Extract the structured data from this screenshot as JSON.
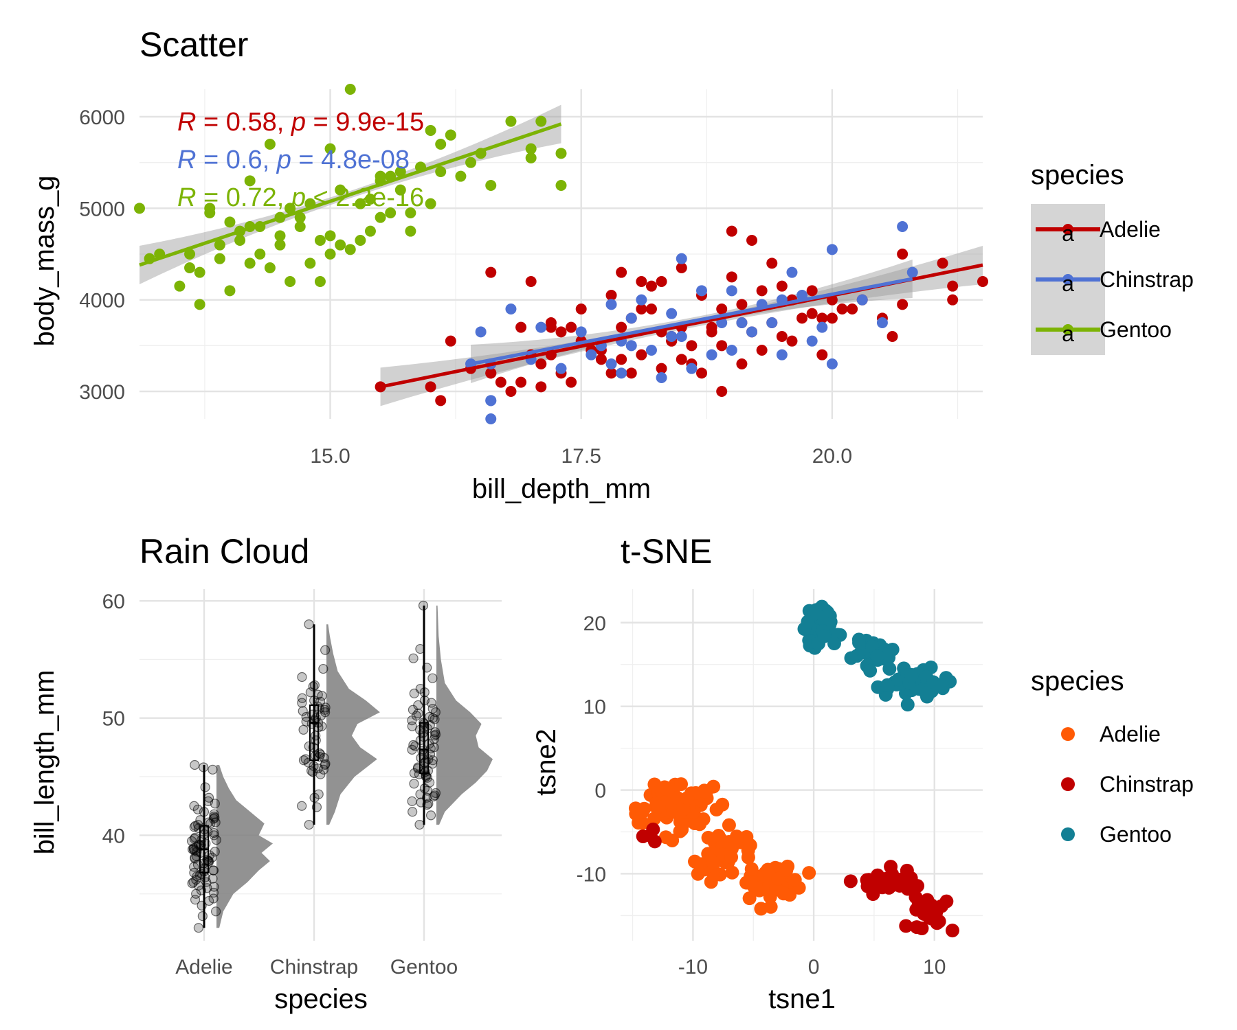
{
  "chart_data": [
    {
      "type": "scatter",
      "title": "Scatter",
      "xlabel": "bill_depth_mm",
      "ylabel": "body_mass_g",
      "xlim": [
        13.1,
        21.5
      ],
      "ylim": [
        2700,
        6300
      ],
      "xticks": [
        "15.0",
        "17.5",
        "20.0"
      ],
      "xtick_values": [
        15,
        17.5,
        20
      ],
      "yticks": [
        "3000",
        "4000",
        "5000",
        "6000"
      ],
      "ytick_values": [
        3000,
        4000,
        5000,
        6000
      ],
      "legend_title": "species",
      "legend_position": "right",
      "grid": true,
      "series": [
        {
          "name": "Adelie",
          "color": "#C00000",
          "fit": [
            [
              15.5,
              3050
            ],
            [
              21.5,
              4380
            ]
          ],
          "stat_R": "0.58",
          "stat_p": "9.9e-15",
          "x": [
            15.5,
            16,
            16.1,
            16.2,
            16.4,
            16.6,
            16.8,
            16.9,
            17,
            17.1,
            17.2,
            17.3,
            17.4,
            17.5,
            17.6,
            17.7,
            17.8,
            17.9,
            18,
            18.1,
            18.2,
            18.3,
            18.4,
            18.5,
            18.6,
            18.7,
            18.8,
            18.9,
            19,
            19.1,
            19.2,
            19.3,
            19.4,
            19.5,
            19.6,
            19.7,
            19.8,
            19.9,
            20,
            20.1,
            20.3,
            20.5,
            20.6,
            20.7,
            21.1,
            21.2,
            21.5,
            16.7,
            17.2,
            17.9,
            18.5,
            19.1,
            19.6,
            20.2,
            17.1,
            17.7,
            18.3,
            18.9,
            19.3,
            16.6,
            17.4,
            18.1,
            18.7,
            19.5,
            20.7,
            17.3,
            17.9,
            18.4,
            19,
            19.8,
            16.9,
            18,
            18.6,
            19.2,
            20,
            17.5,
            18.2,
            18.8,
            19.4,
            17.6,
            18.1,
            18.9,
            17,
            18.5,
            19.1,
            21.2,
            18.3,
            17.8,
            16.6,
            17.2,
            18.4,
            19.9
          ],
          "y": [
            3050,
            3050,
            2900,
            3550,
            3250,
            3200,
            3000,
            3100,
            3400,
            3300,
            3750,
            3200,
            3100,
            3900,
            3450,
            3350,
            3200,
            3700,
            3800,
            4200,
            3900,
            3650,
            3550,
            4350,
            3500,
            4050,
            3700,
            3000,
            4250,
            3750,
            3650,
            3450,
            3750,
            3600,
            3550,
            3800,
            4100,
            3800,
            4000,
            3900,
            4000,
            3800,
            3600,
            3950,
            4400,
            4150,
            4200,
            3100,
            3400,
            4300,
            3700,
            3950,
            4000,
            3900,
            3050,
            3450,
            3250,
            3900,
            4100,
            3200,
            3700,
            3400,
            3200,
            4150,
            4500,
            3650,
            3350,
            3550,
            4750,
            3850,
            3700,
            3200,
            3300,
            4650,
            3800,
            3550,
            4150,
            3650,
            4400,
            3450,
            3900,
            3500,
            4200,
            3350,
            3300,
            4000,
            4200,
            4050,
            4300,
            3700,
            3600,
            3400
          ],
          "r": 0.58,
          "p": 9.9e-15
        },
        {
          "name": "Chinstrap",
          "color": "#4F72D4",
          "fit": [
            [
              16.4,
              3300
            ],
            [
              20.8,
              4230
            ]
          ],
          "stat_R": "0.6",
          "stat_p": "4.8e-08",
          "x": [
            16.4,
            16.5,
            16.6,
            16.6,
            16.6,
            16.8,
            17,
            17.1,
            17.3,
            17.5,
            17.6,
            17.7,
            17.8,
            17.9,
            17.9,
            18,
            18.1,
            18.2,
            18.3,
            18.4,
            18.5,
            18.6,
            18.7,
            18.8,
            18.9,
            19,
            19.1,
            19.2,
            19.3,
            19.4,
            19.5,
            19.6,
            19.7,
            19.8,
            19.9,
            20,
            20,
            20.3,
            20.5,
            20.7,
            20.8,
            18,
            18.5,
            19,
            17.8,
            16.6,
            18.4,
            19.5
          ],
          "y": [
            3300,
            3650,
            2700,
            2900,
            3300,
            3900,
            3350,
            3700,
            3250,
            3650,
            3400,
            3500,
            3950,
            3550,
            3200,
            3800,
            4000,
            3450,
            3150,
            3600,
            4450,
            3250,
            4100,
            3400,
            3750,
            4100,
            3750,
            3650,
            3950,
            3750,
            3400,
            4300,
            4050,
            3550,
            3700,
            3300,
            4550,
            4000,
            3750,
            4800,
            4300,
            3500,
            3600,
            3450,
            3300,
            2900,
            3850,
            4000
          ],
          "r": 0.6,
          "p": 4.8e-08
        },
        {
          "name": "Gentoo",
          "color": "#7CB305",
          "fit": [
            [
              13.1,
              4380
            ],
            [
              17.3,
              5920
            ]
          ],
          "stat_R": "0.72",
          "stat_p": "< 2.2e-16",
          "x": [
            13.1,
            13.2,
            13.3,
            13.5,
            13.6,
            13.7,
            13.7,
            13.8,
            13.9,
            14,
            14,
            14.1,
            14.2,
            14.2,
            14.3,
            14.4,
            14.4,
            14.5,
            14.5,
            14.6,
            14.6,
            14.7,
            14.8,
            14.8,
            14.9,
            15,
            15,
            15.1,
            15.1,
            15.2,
            15.2,
            15.3,
            15.4,
            15.4,
            15.5,
            15.5,
            15.6,
            15.7,
            15.7,
            15.8,
            15.9,
            16,
            16,
            16.1,
            16.2,
            16.3,
            16.4,
            16.5,
            16.6,
            16.8,
            17,
            17,
            17.1,
            17.3,
            17.3,
            13.6,
            14.3,
            14.6,
            15,
            15.8,
            16.1,
            14.1,
            14.9,
            15.5,
            13.9,
            14.7,
            15.3,
            16.2,
            14.5,
            15.6,
            13.8,
            14.2
          ],
          "y": [
            5000,
            4450,
            4500,
            4150,
            4350,
            3950,
            4300,
            4950,
            4600,
            4100,
            4850,
            4650,
            4800,
            5300,
            4500,
            4350,
            5700,
            4700,
            4900,
            4200,
            5000,
            4800,
            4400,
            5050,
            4650,
            4700,
            5650,
            4600,
            5200,
            4550,
            6300,
            4650,
            4750,
            5100,
            4900,
            5300,
            4950,
            5400,
            5200,
            4750,
            5450,
            5050,
            5850,
            5400,
            5800,
            5350,
            5500,
            5600,
            5250,
            5950,
            5550,
            5650,
            5950,
            5600,
            5250,
            4500,
            4800,
            5000,
            4500,
            4950,
            5700,
            4750,
            4200,
            5350,
            4450,
            4900,
            5050,
            5800,
            4600,
            5350,
            5000,
            4400
          ],
          "r": 0.72,
          "p": 2.2e-16
        }
      ]
    },
    {
      "type": "raincloud",
      "title": "Rain Cloud",
      "xlabel": "species",
      "ylabel": "bill_length_mm",
      "categories": [
        "Adelie",
        "Chinstrap",
        "Gentoo"
      ],
      "yticks": [
        "40",
        "50",
        "60"
      ],
      "ytick_values": [
        40,
        50,
        60
      ],
      "ylim": [
        31,
        61
      ],
      "grid": true,
      "groups": [
        {
          "name": "Adelie",
          "min": 32.1,
          "max": 46,
          "q1": 36.8,
          "median": 38.8,
          "q3": 40.8,
          "density": [
            [
              32.1,
              0.05
            ],
            [
              33.5,
              0.12
            ],
            [
              35,
              0.3
            ],
            [
              36,
              0.55
            ],
            [
              37,
              0.75
            ],
            [
              37.8,
              0.95
            ],
            [
              38.5,
              0.8
            ],
            [
              39.3,
              1.0
            ],
            [
              40,
              0.75
            ],
            [
              41,
              0.85
            ],
            [
              42,
              0.6
            ],
            [
              43,
              0.35
            ],
            [
              44,
              0.22
            ],
            [
              45,
              0.12
            ],
            [
              46,
              0.05
            ]
          ],
          "points": [
            32.1,
            33.1,
            33.5,
            34,
            34.4,
            34.5,
            34.6,
            35,
            35.1,
            35.3,
            35.5,
            35.6,
            35.7,
            35.9,
            36,
            36,
            36.2,
            36.3,
            36.4,
            36.5,
            36.6,
            36.7,
            36.8,
            36.9,
            37,
            37,
            37.2,
            37.3,
            37.5,
            37.6,
            37.7,
            37.8,
            37.8,
            37.9,
            38,
            38.1,
            38.1,
            38.2,
            38.3,
            38.5,
            38.6,
            38.6,
            38.7,
            38.8,
            38.8,
            38.9,
            39,
            39.1,
            39.2,
            39.2,
            39.3,
            39.5,
            39.6,
            39.6,
            39.7,
            39.8,
            40,
            40.1,
            40.2,
            40.3,
            40.5,
            40.6,
            40.7,
            40.8,
            40.9,
            41,
            41.1,
            41.1,
            41.3,
            41.4,
            41.5,
            41.6,
            41.8,
            42,
            42.2,
            42.5,
            42.7,
            42.9,
            43.2,
            44.1,
            45.6,
            45.8,
            46
          ]
        },
        {
          "name": "Chinstrap",
          "min": 40.9,
          "max": 58,
          "q1": 46.4,
          "median": 49.6,
          "q3": 51.1,
          "density": [
            [
              40.9,
              0.05
            ],
            [
              42,
              0.15
            ],
            [
              43.5,
              0.25
            ],
            [
              45,
              0.5
            ],
            [
              46.5,
              0.9
            ],
            [
              47.5,
              0.6
            ],
            [
              48.5,
              0.45
            ],
            [
              49.5,
              0.55
            ],
            [
              50.5,
              0.95
            ],
            [
              51.5,
              0.7
            ],
            [
              52.5,
              0.4
            ],
            [
              54,
              0.2
            ],
            [
              55.5,
              0.12
            ],
            [
              57,
              0.06
            ],
            [
              58,
              0.03
            ]
          ],
          "points": [
            40.9,
            42.4,
            42.5,
            43.2,
            43.5,
            45.2,
            45.4,
            45.5,
            45.6,
            45.7,
            45.9,
            46,
            46.1,
            46.2,
            46.4,
            46.5,
            46.6,
            46.7,
            46.8,
            46.9,
            47,
            47.5,
            47.6,
            48.1,
            48.5,
            49,
            49.2,
            49.3,
            49.5,
            49.6,
            49.7,
            49.8,
            50,
            50.1,
            50.2,
            50.3,
            50.5,
            50.6,
            50.7,
            50.8,
            50.9,
            51,
            51.3,
            51.4,
            51.5,
            51.7,
            51.9,
            52,
            52.2,
            52.7,
            52.8,
            53.5,
            54.2,
            55.8,
            58
          ]
        },
        {
          "name": "Gentoo",
          "min": 40.9,
          "max": 59.6,
          "q1": 45.3,
          "median": 47.3,
          "q3": 49.6,
          "density": [
            [
              40.9,
              0.05
            ],
            [
              42,
              0.15
            ],
            [
              43.5,
              0.45
            ],
            [
              44.5,
              0.7
            ],
            [
              45.5,
              0.9
            ],
            [
              46.5,
              1.0
            ],
            [
              47.5,
              0.75
            ],
            [
              48.5,
              0.7
            ],
            [
              49.5,
              0.8
            ],
            [
              50.5,
              0.6
            ],
            [
              51.5,
              0.35
            ],
            [
              53,
              0.15
            ],
            [
              55,
              0.08
            ],
            [
              57,
              0.04
            ],
            [
              59.6,
              0.02
            ]
          ],
          "points": [
            40.9,
            41.7,
            42,
            42.6,
            42.7,
            42.8,
            42.9,
            43.2,
            43.3,
            43.4,
            43.5,
            43.6,
            43.8,
            44,
            44.4,
            44.5,
            44.9,
            45,
            45.1,
            45.2,
            45.3,
            45.4,
            45.5,
            45.5,
            45.7,
            45.8,
            46.1,
            46.2,
            46.3,
            46.4,
            46.5,
            46.6,
            46.8,
            46.9,
            47.2,
            47.3,
            47.4,
            47.5,
            47.6,
            47.7,
            47.8,
            48.1,
            48.2,
            48.4,
            48.5,
            48.6,
            48.7,
            48.8,
            49,
            49.1,
            49.2,
            49.3,
            49.4,
            49.5,
            49.6,
            49.8,
            49.9,
            50,
            50.1,
            50.2,
            50.4,
            50.5,
            50.7,
            50.8,
            51.1,
            51.3,
            51.5,
            52.1,
            52.2,
            52.5,
            53.4,
            54.3,
            55.1,
            55.9,
            59.6
          ]
        }
      ]
    },
    {
      "type": "scatter",
      "title": "t-SNE",
      "xlabel": "tsne1",
      "ylabel": "tsne2",
      "xlim": [
        -16,
        14
      ],
      "ylim": [
        -18,
        24
      ],
      "xticks": [
        "-10",
        "0",
        "10"
      ],
      "xtick_values": [
        -10,
        0,
        10
      ],
      "yticks": [
        "-10",
        "0",
        "10",
        "20"
      ],
      "ytick_values": [
        -10,
        0,
        10,
        20
      ],
      "legend_title": "species",
      "legend_position": "right",
      "grid": true,
      "series": [
        {
          "name": "Adelie",
          "color": "#FF5A05",
          "clusters": [
            {
              "cx": -11,
              "cy": -2,
              "sx": 1.6,
              "sy": 1.8,
              "n": 80
            },
            {
              "cx": -7.5,
              "cy": -8,
              "sx": 1.4,
              "sy": 1.8,
              "n": 35
            },
            {
              "cx": -3.5,
              "cy": -11,
              "sx": 1.5,
              "sy": 1.4,
              "n": 45
            },
            {
              "cx": -14.5,
              "cy": -3,
              "sx": 0.6,
              "sy": 0.7,
              "n": 6
            }
          ]
        },
        {
          "name": "Chinstrap",
          "color": "#C00000",
          "clusters": [
            {
              "cx": 6,
              "cy": -11,
              "sx": 1.8,
              "sy": 1.0,
              "n": 30
            },
            {
              "cx": 9.5,
              "cy": -14.5,
              "sx": 1.0,
              "sy": 1.3,
              "n": 28
            },
            {
              "cx": -13.5,
              "cy": -5.5,
              "sx": 0.4,
              "sy": 0.4,
              "n": 4
            }
          ]
        },
        {
          "name": "Gentoo",
          "color": "#137F94",
          "clusters": [
            {
              "cx": 0.5,
              "cy": 19.5,
              "sx": 0.8,
              "sy": 1.4,
              "n": 45
            },
            {
              "cx": 4.5,
              "cy": 16.5,
              "sx": 1.3,
              "sy": 1.0,
              "n": 30
            },
            {
              "cx": 9,
              "cy": 12.5,
              "sx": 1.8,
              "sy": 1.3,
              "n": 48
            }
          ]
        }
      ]
    }
  ]
}
